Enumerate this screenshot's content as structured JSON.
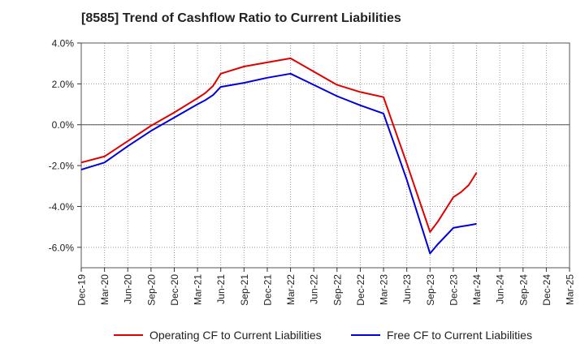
{
  "chart_data": {
    "type": "line",
    "title": "[8585]  Trend of Cashflow Ratio to Current Liabilities",
    "xlabel": "",
    "ylabel": "",
    "ylim": [
      -7.0,
      4.0
    ],
    "y_ticks": [
      4.0,
      2.0,
      0.0,
      -2.0,
      -4.0,
      -6.0
    ],
    "y_tick_labels": [
      "4.0%",
      "2.0%",
      "0.0%",
      "-2.0%",
      "-4.0%",
      "-6.0%"
    ],
    "x_tick_labels": [
      "Dec-19",
      "Mar-20",
      "Jun-20",
      "Sep-20",
      "Dec-20",
      "Mar-21",
      "Jun-21",
      "Sep-21",
      "Dec-21",
      "Mar-22",
      "Jun-22",
      "Sep-22",
      "Dec-22",
      "Mar-23",
      "Jun-23",
      "Sep-23",
      "Dec-23",
      "Mar-24",
      "Jun-24",
      "Sep-24",
      "Dec-24",
      "Mar-25"
    ],
    "grid": true,
    "legend_position": "bottom",
    "series": [
      {
        "name": "Operating CF to Current Liabilities",
        "color": "#e00000",
        "x": [
          "Dec-19",
          "Mar-20",
          "Jun-20",
          "Sep-20",
          "Dec-20",
          "Mar-21",
          "Apr-21",
          "May-21",
          "Jun-21",
          "Sep-21",
          "Dec-21",
          "Mar-22",
          "Jun-22",
          "Sep-22",
          "Dec-22",
          "Mar-23",
          "Jun-23",
          "Sep-23",
          "Oct-23",
          "Nov-23",
          "Dec-23",
          "Jan-24",
          "Feb-24",
          "Mar-24"
        ],
        "values": [
          -1.85,
          -1.55,
          -0.8,
          -0.05,
          0.6,
          1.3,
          1.55,
          1.9,
          2.5,
          2.85,
          3.05,
          3.25,
          2.6,
          1.95,
          1.6,
          1.35,
          -1.9,
          -5.25,
          -4.75,
          -4.15,
          -3.55,
          -3.3,
          -2.95,
          -2.35
        ]
      },
      {
        "name": "Free CF to Current Liabilities",
        "color": "#0000dd",
        "x": [
          "Dec-19",
          "Mar-20",
          "Jun-20",
          "Sep-20",
          "Dec-20",
          "Mar-21",
          "Apr-21",
          "May-21",
          "Jun-21",
          "Sep-21",
          "Dec-21",
          "Mar-22",
          "Jun-22",
          "Sep-22",
          "Dec-22",
          "Mar-23",
          "Jun-23",
          "Sep-23",
          "Oct-23",
          "Nov-23",
          "Dec-23",
          "Jan-24",
          "Feb-24",
          "Mar-24"
        ],
        "values": [
          -2.2,
          -1.85,
          -1.05,
          -0.3,
          0.35,
          1.0,
          1.2,
          1.45,
          1.85,
          2.05,
          2.3,
          2.5,
          1.95,
          1.4,
          0.95,
          0.55,
          -2.7,
          -6.3,
          -5.85,
          -5.45,
          -5.05,
          -4.98,
          -4.92,
          -4.85
        ]
      }
    ]
  }
}
